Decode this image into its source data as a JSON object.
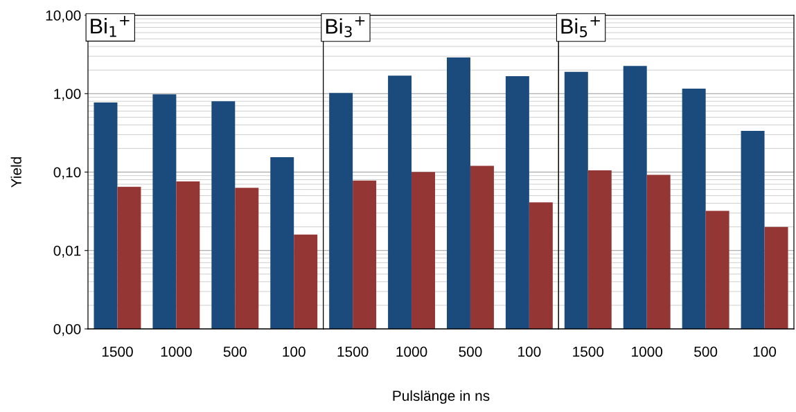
{
  "chart_data": [
    {
      "type": "bar",
      "title": "Bi$_{1}$$^{+}$",
      "xlabel": "Pulslänge in ns",
      "ylabel": "Yield",
      "categories": [
        "1500",
        "1000",
        "500",
        "100"
      ],
      "series": [
        {
          "color": "#1b4a7c",
          "values": [
            0.77,
            0.98,
            0.8,
            0.155
          ]
        },
        {
          "color": "#943634",
          "values": [
            0.065,
            0.076,
            0.063,
            0.016
          ]
        }
      ],
      "log": "y",
      "ylim": [
        0.001,
        10
      ],
      "yticks": [
        {
          "value": 0.001,
          "label": "0,00"
        },
        {
          "value": 0.01,
          "label": "0,01"
        },
        {
          "value": 0.1,
          "label": "0,10"
        },
        {
          "value": 1,
          "label": "1,00"
        },
        {
          "value": 10,
          "label": "10,00"
        }
      ],
      "grid": "y"
    },
    {
      "type": "bar",
      "title": "Bi$_{3}$$^{+}$",
      "categories": [
        "1500",
        "1000",
        "500",
        "100"
      ],
      "series": [
        {
          "color": "#1b4a7c",
          "values": [
            1.02,
            1.7,
            2.9,
            1.67
          ]
        },
        {
          "color": "#943634",
          "values": [
            0.078,
            0.1,
            0.12,
            0.041
          ]
        }
      ],
      "log": "y",
      "ylim": [
        0.001,
        10
      ],
      "yticks": [
        {
          "value": 0.001,
          "label": null
        },
        {
          "value": 0.01,
          "label": null
        },
        {
          "value": 0.1,
          "label": null
        },
        {
          "value": 1,
          "label": null
        },
        {
          "value": 10,
          "label": null
        }
      ],
      "tick_labels": "x",
      "grid": "y"
    },
    {
      "type": "bar",
      "title": "Bi$_{5}$$^{+}$",
      "categories": [
        "1500",
        "1000",
        "500",
        "100"
      ],
      "series": [
        {
          "color": "#1b4a7c",
          "values": [
            1.9,
            2.26,
            1.16,
            0.335
          ]
        },
        {
          "color": "#943634",
          "values": [
            0.105,
            0.092,
            0.032,
            0.02
          ]
        }
      ],
      "log": "y",
      "ylim": [
        0.001,
        10
      ],
      "yticks": [
        {
          "value": 0.001,
          "label": null
        },
        {
          "value": 0.01,
          "label": null
        },
        {
          "value": 0.1,
          "label": null
        },
        {
          "value": 1,
          "label": null
        },
        {
          "value": 10,
          "label": null
        }
      ],
      "tick_labels": "x",
      "grid": "y"
    }
  ]
}
